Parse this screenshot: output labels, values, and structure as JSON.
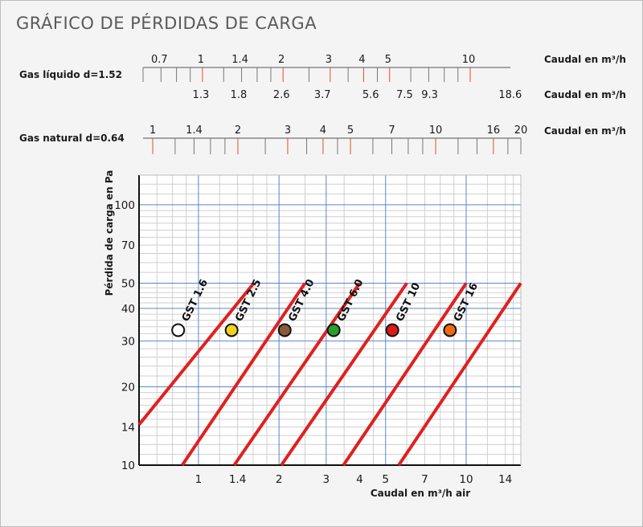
{
  "page": {
    "title": "GRÁFICO DE PÉRDIDAS DE CARGA"
  },
  "scales": [
    {
      "name": "Gas líquido d=1.52",
      "unit_top": "Caudal en m³/h",
      "unit_bottom": "Caudal en m³/h",
      "top_labels": [
        {
          "label": "0.7",
          "value": 0.7
        },
        {
          "label": "1",
          "value": 1
        },
        {
          "label": "1.4",
          "value": 1.4
        },
        {
          "label": "2",
          "value": 2
        },
        {
          "label": "3",
          "value": 3
        },
        {
          "label": "4",
          "value": 4
        },
        {
          "label": "5",
          "value": 5
        },
        {
          "label": "10",
          "value": 10
        }
      ],
      "bottom_labels": [
        {
          "label": "1.3",
          "value": 1.3
        },
        {
          "label": "1.8",
          "value": 1.8
        },
        {
          "label": "2.6",
          "value": 2.6
        },
        {
          "label": "3.7",
          "value": 3.7
        },
        {
          "label": "5.6",
          "value": 5.6
        },
        {
          "label": "7.5",
          "value": 7.5
        },
        {
          "label": "9.3",
          "value": 9.3
        },
        {
          "label": "18.6",
          "value": 18.6
        }
      ],
      "highlight_values": [
        1,
        2,
        3,
        4,
        5,
        10
      ]
    },
    {
      "name": "Gas natural d=0.64",
      "unit_top": "Caudal en m³/h",
      "top_labels": [
        {
          "label": "1",
          "value": 1
        },
        {
          "label": "1.4",
          "value": 1.4
        },
        {
          "label": "2",
          "value": 2
        },
        {
          "label": "3",
          "value": 3
        },
        {
          "label": "4",
          "value": 4
        },
        {
          "label": "5",
          "value": 5
        },
        {
          "label": "7",
          "value": 7
        },
        {
          "label": "10",
          "value": 10
        },
        {
          "label": "16",
          "value": 16
        },
        {
          "label": "20",
          "value": 20
        }
      ],
      "highlight_values": [
        1,
        2,
        3,
        4,
        5,
        10,
        16
      ]
    }
  ],
  "chart_data": {
    "type": "line",
    "xlabel": "Caudal en m³/h air",
    "ylabel": "Pérdida de carga en Pa",
    "xscale": "log",
    "yscale": "log",
    "xlim": [
      0.6,
      16
    ],
    "ylim": [
      10,
      130
    ],
    "x_ticks": [
      {
        "label": "1",
        "value": 1
      },
      {
        "label": "1.4",
        "value": 1.4
      },
      {
        "label": "2",
        "value": 2
      },
      {
        "label": "3",
        "value": 3
      },
      {
        "label": "4",
        "value": 4
      },
      {
        "label": "5",
        "value": 5
      },
      {
        "label": "7",
        "value": 7
      },
      {
        "label": "10",
        "value": 10
      },
      {
        "label": "14",
        "value": 14
      }
    ],
    "y_ticks": [
      {
        "label": "10",
        "value": 10
      },
      {
        "label": "14",
        "value": 14
      },
      {
        "label": "20",
        "value": 20
      },
      {
        "label": "30",
        "value": 30
      },
      {
        "label": "40",
        "value": 40
      },
      {
        "label": "50",
        "value": 50
      },
      {
        "label": "70",
        "value": 70
      },
      {
        "label": "100",
        "value": 100
      }
    ],
    "grid": true,
    "series": [
      {
        "name": "GST 1.6",
        "color": "#e02020",
        "marker_color": "#ffffff",
        "points": [
          [
            0.6,
            14.3
          ],
          [
            1.61,
            50
          ]
        ],
        "marker": [
          0.84,
          33
        ]
      },
      {
        "name": "GST 2.5",
        "color": "#e02020",
        "marker_color": "#f4d21a",
        "points": [
          [
            0.87,
            10
          ],
          [
            2.5,
            50
          ]
        ],
        "marker": [
          1.33,
          33
        ]
      },
      {
        "name": "GST 4.0",
        "color": "#e02020",
        "marker_color": "#8a5a36",
        "points": [
          [
            1.36,
            10
          ],
          [
            4.0,
            50
          ]
        ],
        "marker": [
          2.1,
          33
        ]
      },
      {
        "name": "GST 6.0",
        "color": "#e02020",
        "marker_color": "#2aa02a",
        "points": [
          [
            2.04,
            10
          ],
          [
            6.0,
            50
          ]
        ],
        "marker": [
          3.2,
          33
        ]
      },
      {
        "name": "GST 10",
        "color": "#e02020",
        "marker_color": "#e01818",
        "points": [
          [
            3.48,
            10
          ],
          [
            10.0,
            50
          ]
        ],
        "marker": [
          5.3,
          33
        ]
      },
      {
        "name": "GST 16",
        "color": "#e02020",
        "marker_color": "#ee6a10",
        "points": [
          [
            5.6,
            10
          ],
          [
            16.0,
            50
          ]
        ],
        "marker": [
          8.7,
          33
        ]
      }
    ]
  }
}
